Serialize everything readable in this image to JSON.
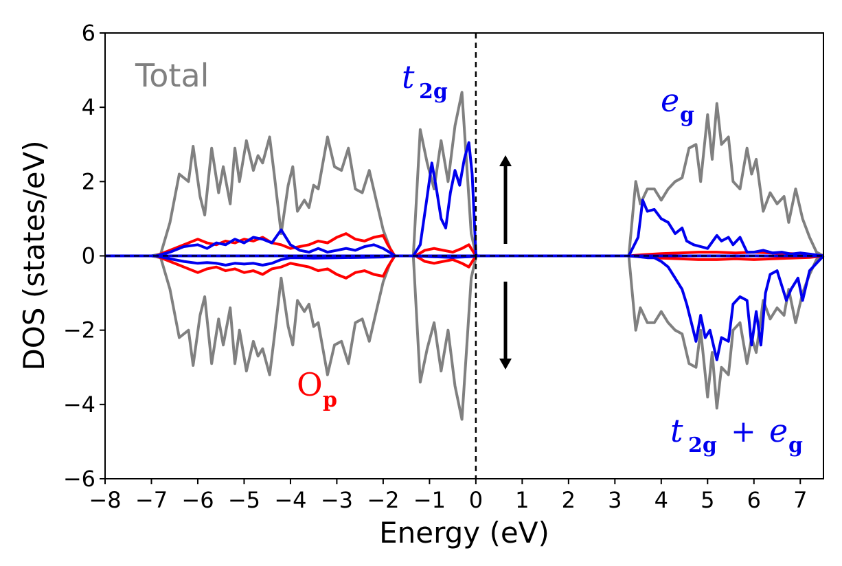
{
  "chart_data": {
    "type": "line",
    "title": "",
    "xlabel": "Energy (eV)",
    "ylabel": "DOS (states/eV)",
    "xlim": [
      -8,
      7.5
    ],
    "ylim": [
      -6,
      6
    ],
    "xticks": [
      -8,
      -7,
      -6,
      -5,
      -4,
      -3,
      -2,
      -1,
      0,
      1,
      2,
      3,
      4,
      5,
      6,
      7
    ],
    "xtick_labels": [
      "−8",
      "−7",
      "−6",
      "−5",
      "−4",
      "−3",
      "−2",
      "−1",
      "0",
      "1",
      "2",
      "3",
      "4",
      "5",
      "6",
      "7"
    ],
    "yticks": [
      -6,
      -4,
      -2,
      0,
      2,
      4,
      6
    ],
    "ytick_labels": [
      "−6",
      "−4",
      "−2",
      "0",
      "2",
      "4",
      "6"
    ],
    "fermi_level": 0,
    "colors": {
      "total": "#808080",
      "t2g": "#0000ee",
      "op": "#ff0000",
      "axis": "#000000"
    },
    "annotations": {
      "total": "Total",
      "t2g_main": "t",
      "t2g_sub": "2g",
      "eg_main": "e",
      "eg_sub": "g",
      "op_main": "O",
      "op_sub": "p",
      "combo_t": "t",
      "combo_t_sub": "2g",
      "combo_plus": "+",
      "combo_e": "e",
      "combo_e_sub": "g"
    },
    "spin_arrows": [
      "up",
      "down"
    ],
    "series": [
      {
        "name": "Total spin-up",
        "color": "#808080",
        "x": [
          -8,
          -7,
          -6.8,
          -6.6,
          -6.4,
          -6.2,
          -6.1,
          -5.95,
          -5.85,
          -5.7,
          -5.55,
          -5.45,
          -5.3,
          -5.2,
          -5.1,
          -4.95,
          -4.8,
          -4.7,
          -4.6,
          -4.45,
          -4.35,
          -4.2,
          -4.05,
          -3.95,
          -3.85,
          -3.7,
          -3.6,
          -3.5,
          -3.4,
          -3.2,
          -3.05,
          -2.9,
          -2.75,
          -2.6,
          -2.45,
          -2.3,
          -2.15,
          -2.0,
          -1.85,
          -1.75,
          -1.35,
          -1.2,
          -1.05,
          -0.9,
          -0.75,
          -0.6,
          -0.45,
          -0.3,
          -0.2,
          -0.1,
          0,
          0.02,
          3.3,
          3.45,
          3.55,
          3.7,
          3.85,
          4.0,
          4.15,
          4.3,
          4.45,
          4.6,
          4.75,
          4.85,
          5.0,
          5.1,
          5.2,
          5.3,
          5.45,
          5.55,
          5.7,
          5.85,
          5.95,
          6.05,
          6.2,
          6.35,
          6.5,
          6.65,
          6.75,
          6.9,
          7.05,
          7.2,
          7.35,
          7.5
        ],
        "values": [
          0,
          0,
          0.05,
          0.9,
          2.2,
          2.0,
          2.95,
          1.6,
          1.1,
          2.9,
          1.7,
          2.4,
          1.4,
          2.9,
          2.0,
          3.1,
          2.3,
          2.7,
          2.5,
          3.2,
          2.2,
          0.6,
          1.9,
          2.4,
          1.2,
          1.5,
          1.3,
          1.9,
          1.8,
          3.2,
          2.4,
          2.3,
          2.9,
          1.8,
          1.7,
          2.3,
          1.5,
          0.7,
          0.2,
          0,
          0,
          3.4,
          2.5,
          1.8,
          3.1,
          2.0,
          3.5,
          4.4,
          2.5,
          0.6,
          0.05,
          0,
          0,
          2.0,
          1.4,
          1.8,
          1.8,
          1.5,
          1.8,
          2.0,
          2.1,
          2.9,
          3.0,
          2.0,
          3.8,
          2.6,
          4.1,
          3.0,
          3.2,
          2.0,
          1.8,
          2.9,
          2.2,
          2.6,
          1.2,
          1.7,
          1.4,
          1.6,
          0.9,
          1.8,
          1.0,
          0.5,
          0.1,
          0
        ]
      },
      {
        "name": "Total spin-down",
        "color": "#808080",
        "x": [
          -8,
          -7,
          -6.8,
          -6.6,
          -6.4,
          -6.2,
          -6.1,
          -5.95,
          -5.85,
          -5.7,
          -5.55,
          -5.45,
          -5.3,
          -5.2,
          -5.1,
          -4.95,
          -4.8,
          -4.7,
          -4.6,
          -4.45,
          -4.35,
          -4.2,
          -4.05,
          -3.95,
          -3.85,
          -3.7,
          -3.6,
          -3.5,
          -3.4,
          -3.2,
          -3.05,
          -2.9,
          -2.75,
          -2.6,
          -2.45,
          -2.3,
          -2.15,
          -2.0,
          -1.85,
          -1.75,
          -1.35,
          -1.2,
          -1.05,
          -0.9,
          -0.75,
          -0.6,
          -0.45,
          -0.3,
          -0.2,
          -0.1,
          0,
          0.02,
          3.3,
          3.45,
          3.55,
          3.7,
          3.85,
          4.0,
          4.15,
          4.3,
          4.45,
          4.6,
          4.75,
          4.85,
          5.0,
          5.1,
          5.2,
          5.3,
          5.45,
          5.55,
          5.7,
          5.85,
          5.95,
          6.05,
          6.2,
          6.35,
          6.5,
          6.65,
          6.75,
          6.9,
          7.05,
          7.2,
          7.35,
          7.5
        ],
        "values": [
          0,
          0,
          -0.05,
          -0.9,
          -2.2,
          -2.0,
          -2.95,
          -1.6,
          -1.1,
          -2.9,
          -1.7,
          -2.4,
          -1.4,
          -2.9,
          -2.0,
          -3.1,
          -2.3,
          -2.7,
          -2.5,
          -3.2,
          -2.2,
          -0.6,
          -1.9,
          -2.4,
          -1.2,
          -1.5,
          -1.3,
          -1.9,
          -1.8,
          -3.2,
          -2.4,
          -2.3,
          -2.9,
          -1.8,
          -1.7,
          -2.3,
          -1.5,
          -0.7,
          -0.2,
          0,
          0,
          -3.4,
          -2.5,
          -1.8,
          -3.1,
          -2.0,
          -3.5,
          -4.4,
          -2.5,
          -0.6,
          -0.05,
          0,
          0,
          -2.0,
          -1.4,
          -1.8,
          -1.8,
          -1.5,
          -1.8,
          -2.0,
          -2.1,
          -2.9,
          -3.0,
          -2.0,
          -3.8,
          -2.6,
          -4.1,
          -3.0,
          -3.2,
          -2.0,
          -1.8,
          -2.9,
          -2.2,
          -2.6,
          -1.2,
          -1.7,
          -1.4,
          -1.6,
          -0.9,
          -1.8,
          -1.0,
          -0.5,
          -0.1,
          0
        ]
      },
      {
        "name": "t2g spin-up",
        "color": "#0000ee",
        "x": [
          -8,
          -1.35,
          -1.2,
          -1.05,
          -0.95,
          -0.85,
          -0.75,
          -0.65,
          -0.55,
          -0.45,
          -0.35,
          -0.25,
          -0.15,
          -0.08,
          0,
          0.02,
          7.5
        ],
        "values": [
          0,
          0,
          0.3,
          1.6,
          2.5,
          1.8,
          1.0,
          0.75,
          1.7,
          2.3,
          1.9,
          2.6,
          3.05,
          2.2,
          0.05,
          0,
          0
        ]
      },
      {
        "name": "t2g spin-down",
        "color": "#0000ee",
        "x": [
          -8,
          -1.35,
          -1.0,
          -0.5,
          -0.1,
          0,
          7.5
        ],
        "values": [
          0,
          0,
          -0.02,
          -0.04,
          -0.02,
          0,
          0
        ]
      },
      {
        "name": "eg spin-up",
        "color": "#0000ee",
        "x": [
          -8,
          3.3,
          3.5,
          3.6,
          3.7,
          3.85,
          4.0,
          4.15,
          4.3,
          4.45,
          4.55,
          4.7,
          4.85,
          5.0,
          5.2,
          5.3,
          5.45,
          5.55,
          5.7,
          5.85,
          6.0,
          6.2,
          6.4,
          6.6,
          6.8,
          7.0,
          7.2,
          7.5
        ],
        "values": [
          0,
          0,
          0.5,
          1.5,
          1.2,
          1.25,
          1.0,
          0.9,
          0.6,
          0.75,
          0.4,
          0.3,
          0.25,
          0.2,
          0.55,
          0.4,
          0.5,
          0.3,
          0.5,
          0.1,
          0.1,
          0.15,
          0.08,
          0.1,
          0.05,
          0.08,
          0.05,
          0
        ]
      },
      {
        "name": "t2g+eg spin-down",
        "color": "#0000ee",
        "x": [
          -8,
          3.3,
          3.5,
          3.7,
          3.85,
          4.0,
          4.15,
          4.3,
          4.45,
          4.55,
          4.65,
          4.75,
          4.85,
          4.95,
          5.05,
          5.2,
          5.3,
          5.45,
          5.55,
          5.7,
          5.85,
          5.95,
          6.05,
          6.15,
          6.25,
          6.35,
          6.5,
          6.6,
          6.7,
          6.8,
          6.95,
          7.05,
          7.2,
          7.35,
          7.5
        ],
        "values": [
          0,
          0,
          -0.02,
          -0.05,
          -0.05,
          -0.15,
          -0.3,
          -0.6,
          -0.9,
          -1.3,
          -1.8,
          -2.3,
          -1.6,
          -2.2,
          -2.0,
          -2.8,
          -2.2,
          -2.3,
          -1.3,
          -1.1,
          -1.2,
          -2.4,
          -1.5,
          -2.4,
          -1.0,
          -0.5,
          -0.4,
          -0.8,
          -1.2,
          -0.9,
          -0.6,
          -1.2,
          -0.4,
          -0.2,
          0
        ]
      },
      {
        "name": "Op spin-up",
        "color": "#ff0000",
        "x": [
          -8,
          -6.9,
          -6.6,
          -6.3,
          -6.0,
          -5.8,
          -5.6,
          -5.4,
          -5.2,
          -5.0,
          -4.8,
          -4.6,
          -4.4,
          -4.2,
          -4.0,
          -3.8,
          -3.6,
          -3.4,
          -3.2,
          -3.0,
          -2.8,
          -2.6,
          -2.4,
          -2.2,
          -2.0,
          -1.9,
          -1.75,
          -1.3,
          -1.1,
          -0.9,
          -0.7,
          -0.5,
          -0.3,
          -0.15,
          0,
          3.3,
          3.6,
          4.0,
          4.4,
          4.8,
          5.2,
          5.6,
          6.0,
          6.4,
          6.8,
          7.2,
          7.5
        ],
        "values": [
          0,
          0,
          0.15,
          0.3,
          0.45,
          0.35,
          0.3,
          0.4,
          0.35,
          0.45,
          0.4,
          0.5,
          0.35,
          0.3,
          0.2,
          0.25,
          0.3,
          0.4,
          0.35,
          0.5,
          0.6,
          0.45,
          0.4,
          0.5,
          0.55,
          0.3,
          0,
          0,
          0.15,
          0.2,
          0.15,
          0.1,
          0.2,
          0.3,
          0,
          0,
          0.03,
          0.06,
          0.08,
          0.1,
          0.1,
          0.08,
          0.1,
          0.08,
          0.06,
          0.04,
          0
        ]
      },
      {
        "name": "Op spin-down",
        "color": "#ff0000",
        "x": [
          -8,
          -6.9,
          -6.6,
          -6.3,
          -6.0,
          -5.8,
          -5.6,
          -5.4,
          -5.2,
          -5.0,
          -4.8,
          -4.6,
          -4.4,
          -4.2,
          -4.0,
          -3.8,
          -3.6,
          -3.4,
          -3.2,
          -3.0,
          -2.8,
          -2.6,
          -2.4,
          -2.2,
          -2.0,
          -1.9,
          -1.75,
          -1.3,
          -1.1,
          -0.9,
          -0.7,
          -0.5,
          -0.3,
          -0.15,
          0,
          3.3,
          3.6,
          4.0,
          4.4,
          4.8,
          5.2,
          5.6,
          6.0,
          6.4,
          6.8,
          7.2,
          7.5
        ],
        "values": [
          0,
          0,
          -0.15,
          -0.3,
          -0.45,
          -0.35,
          -0.3,
          -0.4,
          -0.35,
          -0.45,
          -0.4,
          -0.5,
          -0.35,
          -0.3,
          -0.2,
          -0.25,
          -0.3,
          -0.4,
          -0.35,
          -0.5,
          -0.6,
          -0.45,
          -0.4,
          -0.5,
          -0.55,
          -0.3,
          0,
          0,
          -0.15,
          -0.2,
          -0.15,
          -0.1,
          -0.2,
          -0.3,
          0,
          0,
          -0.03,
          -0.06,
          -0.08,
          -0.1,
          -0.1,
          -0.08,
          -0.1,
          -0.08,
          -0.06,
          -0.04,
          0
        ]
      },
      {
        "name": "t2g spin-down (lower valence)",
        "color": "#0000ee",
        "x": [
          -8,
          -6.9,
          -6.6,
          -6.3,
          -6.0,
          -5.8,
          -5.6,
          -5.4,
          -5.2,
          -5.0,
          -4.8,
          -4.6,
          -4.4,
          -4.2,
          -4.0,
          -3.8,
          -3.5,
          -3.0,
          -2.5,
          -2.0,
          -1.75,
          7.5
        ],
        "values": [
          0,
          0,
          -0.08,
          -0.15,
          -0.2,
          -0.18,
          -0.2,
          -0.25,
          -0.2,
          -0.22,
          -0.2,
          -0.25,
          -0.2,
          -0.1,
          -0.05,
          -0.05,
          -0.06,
          -0.05,
          -0.04,
          -0.03,
          0,
          0
        ]
      },
      {
        "name": "t2g spin-up (lower valence)",
        "color": "#0000ee",
        "x": [
          -8,
          -6.9,
          -6.6,
          -6.3,
          -6.0,
          -5.8,
          -5.6,
          -5.4,
          -5.2,
          -5.0,
          -4.8,
          -4.6,
          -4.4,
          -4.2,
          -4.0,
          -3.8,
          -3.6,
          -3.4,
          -3.2,
          -3.0,
          -2.8,
          -2.6,
          -2.4,
          -2.2,
          -2.0,
          -1.8,
          -1.75,
          7.5
        ],
        "values": [
          0,
          0,
          0.1,
          0.25,
          0.3,
          0.2,
          0.35,
          0.3,
          0.45,
          0.35,
          0.5,
          0.45,
          0.35,
          0.7,
          0.3,
          0.15,
          0.1,
          0.2,
          0.1,
          0.15,
          0.2,
          0.15,
          0.25,
          0.3,
          0.2,
          0.05,
          0,
          0
        ]
      }
    ]
  }
}
